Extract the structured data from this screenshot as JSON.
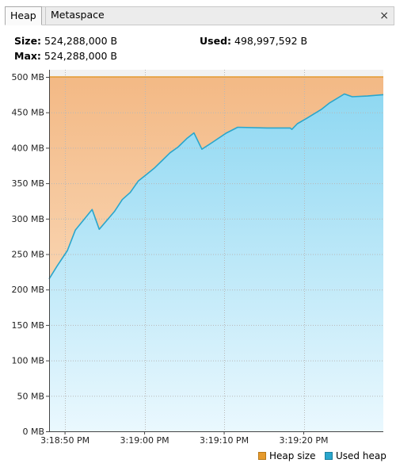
{
  "tabs": [
    {
      "label": "Heap",
      "active": true
    },
    {
      "label": "Metaspace",
      "active": false
    }
  ],
  "close_icon": "×",
  "info": {
    "size_label": "Size:",
    "size_value": "524,288,000 B",
    "used_label": "Used:",
    "used_value": "498,997,592 B",
    "max_label": "Max:",
    "max_value": "524,288,000 B"
  },
  "colors": {
    "heap_size_line": "#e69a2c",
    "heap_size_fill": "#f5c08f",
    "used_heap_line": "#2aa6cc",
    "used_heap_fill": "#9fdcf3"
  },
  "chart_data": {
    "type": "area",
    "y_unit": "MB",
    "ylim": [
      0,
      500
    ],
    "y_ticks": [
      0,
      50,
      100,
      150,
      200,
      250,
      300,
      350,
      400,
      450,
      500
    ],
    "y_tick_labels": [
      "0 MB",
      "50 MB",
      "100 MB",
      "150 MB",
      "200 MB",
      "250 MB",
      "300 MB",
      "350 MB",
      "400 MB",
      "450 MB",
      "500 MB"
    ],
    "xlim": [
      "3:18:48",
      "3:19:30"
    ],
    "x_ticks": [
      "3:18:50",
      "3:19:00",
      "3:19:10",
      "3:19:20"
    ],
    "x_tick_labels": [
      "3:18:50 PM",
      "3:19:00 PM",
      "3:19:10 PM",
      "3:19:20 PM"
    ],
    "grid": true,
    "legend_position": "bottom-right",
    "series": [
      {
        "name": "Heap size",
        "x": [
          "3:18:48",
          "3:19:30"
        ],
        "values": [
          500,
          500
        ]
      },
      {
        "name": "Used heap",
        "x": [
          "3:18:48",
          "3:18:49",
          "3:18:50.3",
          "3:18:51.3",
          "3:18:53.4",
          "3:18:54.3",
          "3:18:56.2",
          "3:18:57.2",
          "3:18:58.2",
          "3:18:59.2",
          "3:19:00.2",
          "3:19:01.2",
          "3:19:02.2",
          "3:19:03.2",
          "3:19:04.2",
          "3:19:05.3",
          "3:19:06.2",
          "3:19:07.2",
          "3:19:08.3",
          "3:19:10.3",
          "3:19:11.7",
          "3:19:15.4",
          "3:19:18.3",
          "3:19:18.5",
          "3:19:19.2",
          "3:19:20.3",
          "3:19:22.2",
          "3:19:23.2",
          "3:19:25.1",
          "3:19:26.1",
          "3:19:28.0",
          "3:19:30"
        ],
        "values": [
          215,
          233,
          255,
          284,
          313,
          285,
          310,
          327,
          337,
          353,
          362,
          371,
          382,
          393,
          401,
          413,
          421,
          398,
          406,
          421,
          429,
          428,
          428,
          426,
          434,
          441,
          454,
          463,
          476,
          472,
          473,
          475
        ]
      }
    ]
  }
}
